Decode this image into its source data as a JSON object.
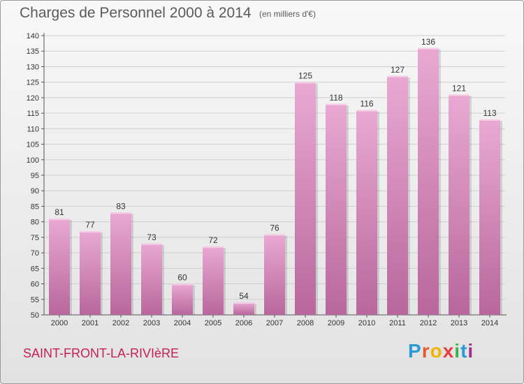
{
  "header": {
    "title": "Charges de Personnel 2000 à 2014",
    "subtitle": "(en milliers d'€)"
  },
  "footer": {
    "commune": "SAINT-FRONT-LA-RIVIèRE",
    "brand": "Proxiti"
  },
  "colors": {
    "bar_top": "#e9a9d3",
    "bar_bottom": "#b8679c",
    "title": "#5a5a5a",
    "commune": "#c3215a",
    "brand_letters": [
      "#2a9ad6",
      "#e35a2b",
      "#f0b500",
      "#e83e3e",
      "#3bb54a",
      "#2a9ad6",
      "#a22e8c"
    ]
  },
  "chart_data": {
    "type": "bar",
    "title": "Charges de Personnel 2000 à 2014",
    "subtitle": "(en milliers d'€)",
    "categories": [
      "2000",
      "2001",
      "2002",
      "2003",
      "2004",
      "2005",
      "2006",
      "2007",
      "2008",
      "2009",
      "2010",
      "2011",
      "2012",
      "2013",
      "2014"
    ],
    "values": [
      81,
      77,
      83,
      73,
      60,
      72,
      54,
      76,
      125,
      118,
      116,
      127,
      136,
      121,
      113
    ],
    "ylim": [
      50,
      140
    ],
    "yticks": [
      50,
      55,
      60,
      65,
      70,
      75,
      80,
      85,
      90,
      95,
      100,
      105,
      110,
      115,
      120,
      125,
      130,
      135,
      140
    ],
    "grid": true,
    "xlabel": "",
    "ylabel": ""
  }
}
